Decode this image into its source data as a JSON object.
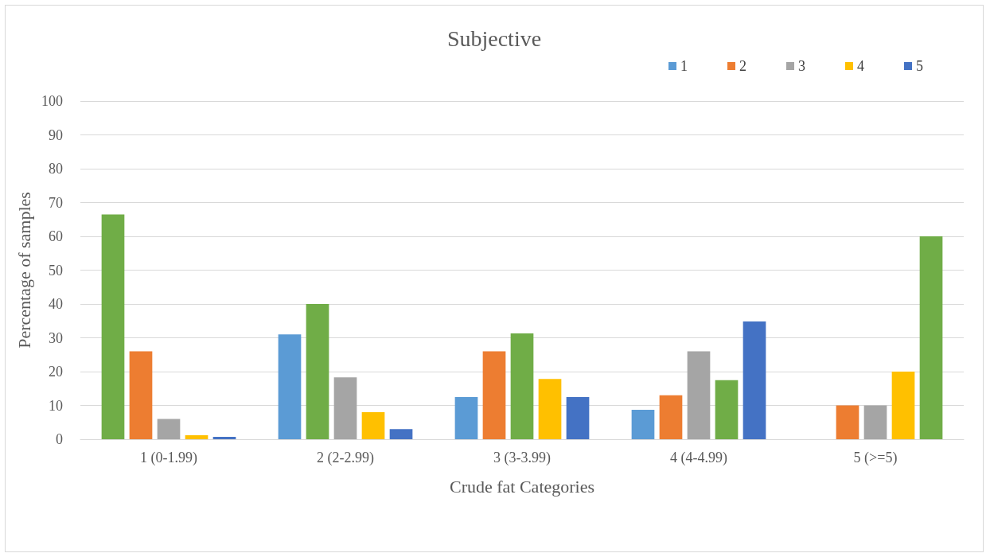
{
  "chart_data": {
    "type": "bar",
    "title": "Subjective",
    "xlabel": "Crude fat Categories",
    "ylabel": "Percentage of samples",
    "categories": [
      "1 (0-1.99)",
      "2 (2-2.99)",
      "3 (3-3.99)",
      "4 (4-4.99)",
      "5 (>=5)"
    ],
    "series": [
      {
        "name": "1",
        "color": "#5b9bd5",
        "colors": [
          "#70ad47",
          "#5b9bd5",
          "#5b9bd5",
          "#5b9bd5",
          "#5b9bd5"
        ],
        "values": [
          66.5,
          31,
          12.5,
          8.7,
          0
        ]
      },
      {
        "name": "2",
        "color": "#ed7d31",
        "colors": [
          "#ed7d31",
          "#70ad47",
          "#ed7d31",
          "#ed7d31",
          "#ed7d31"
        ],
        "values": [
          26,
          40,
          26,
          13,
          10
        ]
      },
      {
        "name": "3",
        "color": "#a5a5a5",
        "colors": [
          "#a5a5a5",
          "#a5a5a5",
          "#70ad47",
          "#a5a5a5",
          "#a5a5a5"
        ],
        "values": [
          6,
          18.3,
          31.3,
          26,
          10
        ]
      },
      {
        "name": "4",
        "color": "#ffc000",
        "colors": [
          "#ffc000",
          "#ffc000",
          "#ffc000",
          "#70ad47",
          "#ffc000"
        ],
        "values": [
          1.2,
          8,
          17.8,
          17.5,
          20
        ]
      },
      {
        "name": "5",
        "color": "#4472c4",
        "colors": [
          "#4472c4",
          "#4472c4",
          "#4472c4",
          "#4472c4",
          "#70ad47"
        ],
        "values": [
          0.7,
          3,
          12.5,
          34.8,
          60
        ]
      }
    ],
    "ylim": [
      0,
      100
    ],
    "yticks": [
      0,
      10,
      20,
      30,
      40,
      50,
      60,
      70,
      80,
      90,
      100
    ],
    "grid": "y",
    "legend": "top right"
  }
}
